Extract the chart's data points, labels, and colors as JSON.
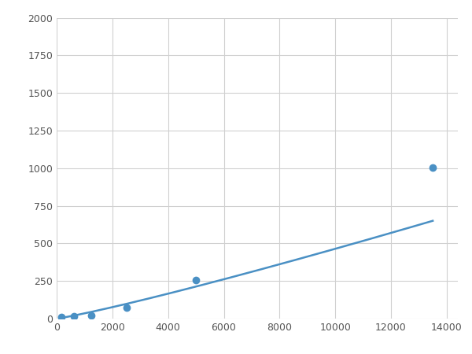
{
  "x_points": [
    156,
    625,
    1250,
    2500,
    5000,
    13500
  ],
  "y_points": [
    8,
    16,
    22,
    75,
    255,
    1005
  ],
  "line_color": "#4a90c4",
  "marker_color": "#4a90c4",
  "marker_size": 6,
  "line_width": 1.8,
  "xlim": [
    0,
    14400
  ],
  "ylim": [
    0,
    2000
  ],
  "xticks": [
    0,
    2000,
    4000,
    6000,
    8000,
    10000,
    12000,
    14000
  ],
  "yticks": [
    0,
    250,
    500,
    750,
    1000,
    1250,
    1500,
    1750,
    2000
  ],
  "grid_color": "#d0d0d0",
  "background_color": "#ffffff",
  "figure_facecolor": "#ffffff"
}
